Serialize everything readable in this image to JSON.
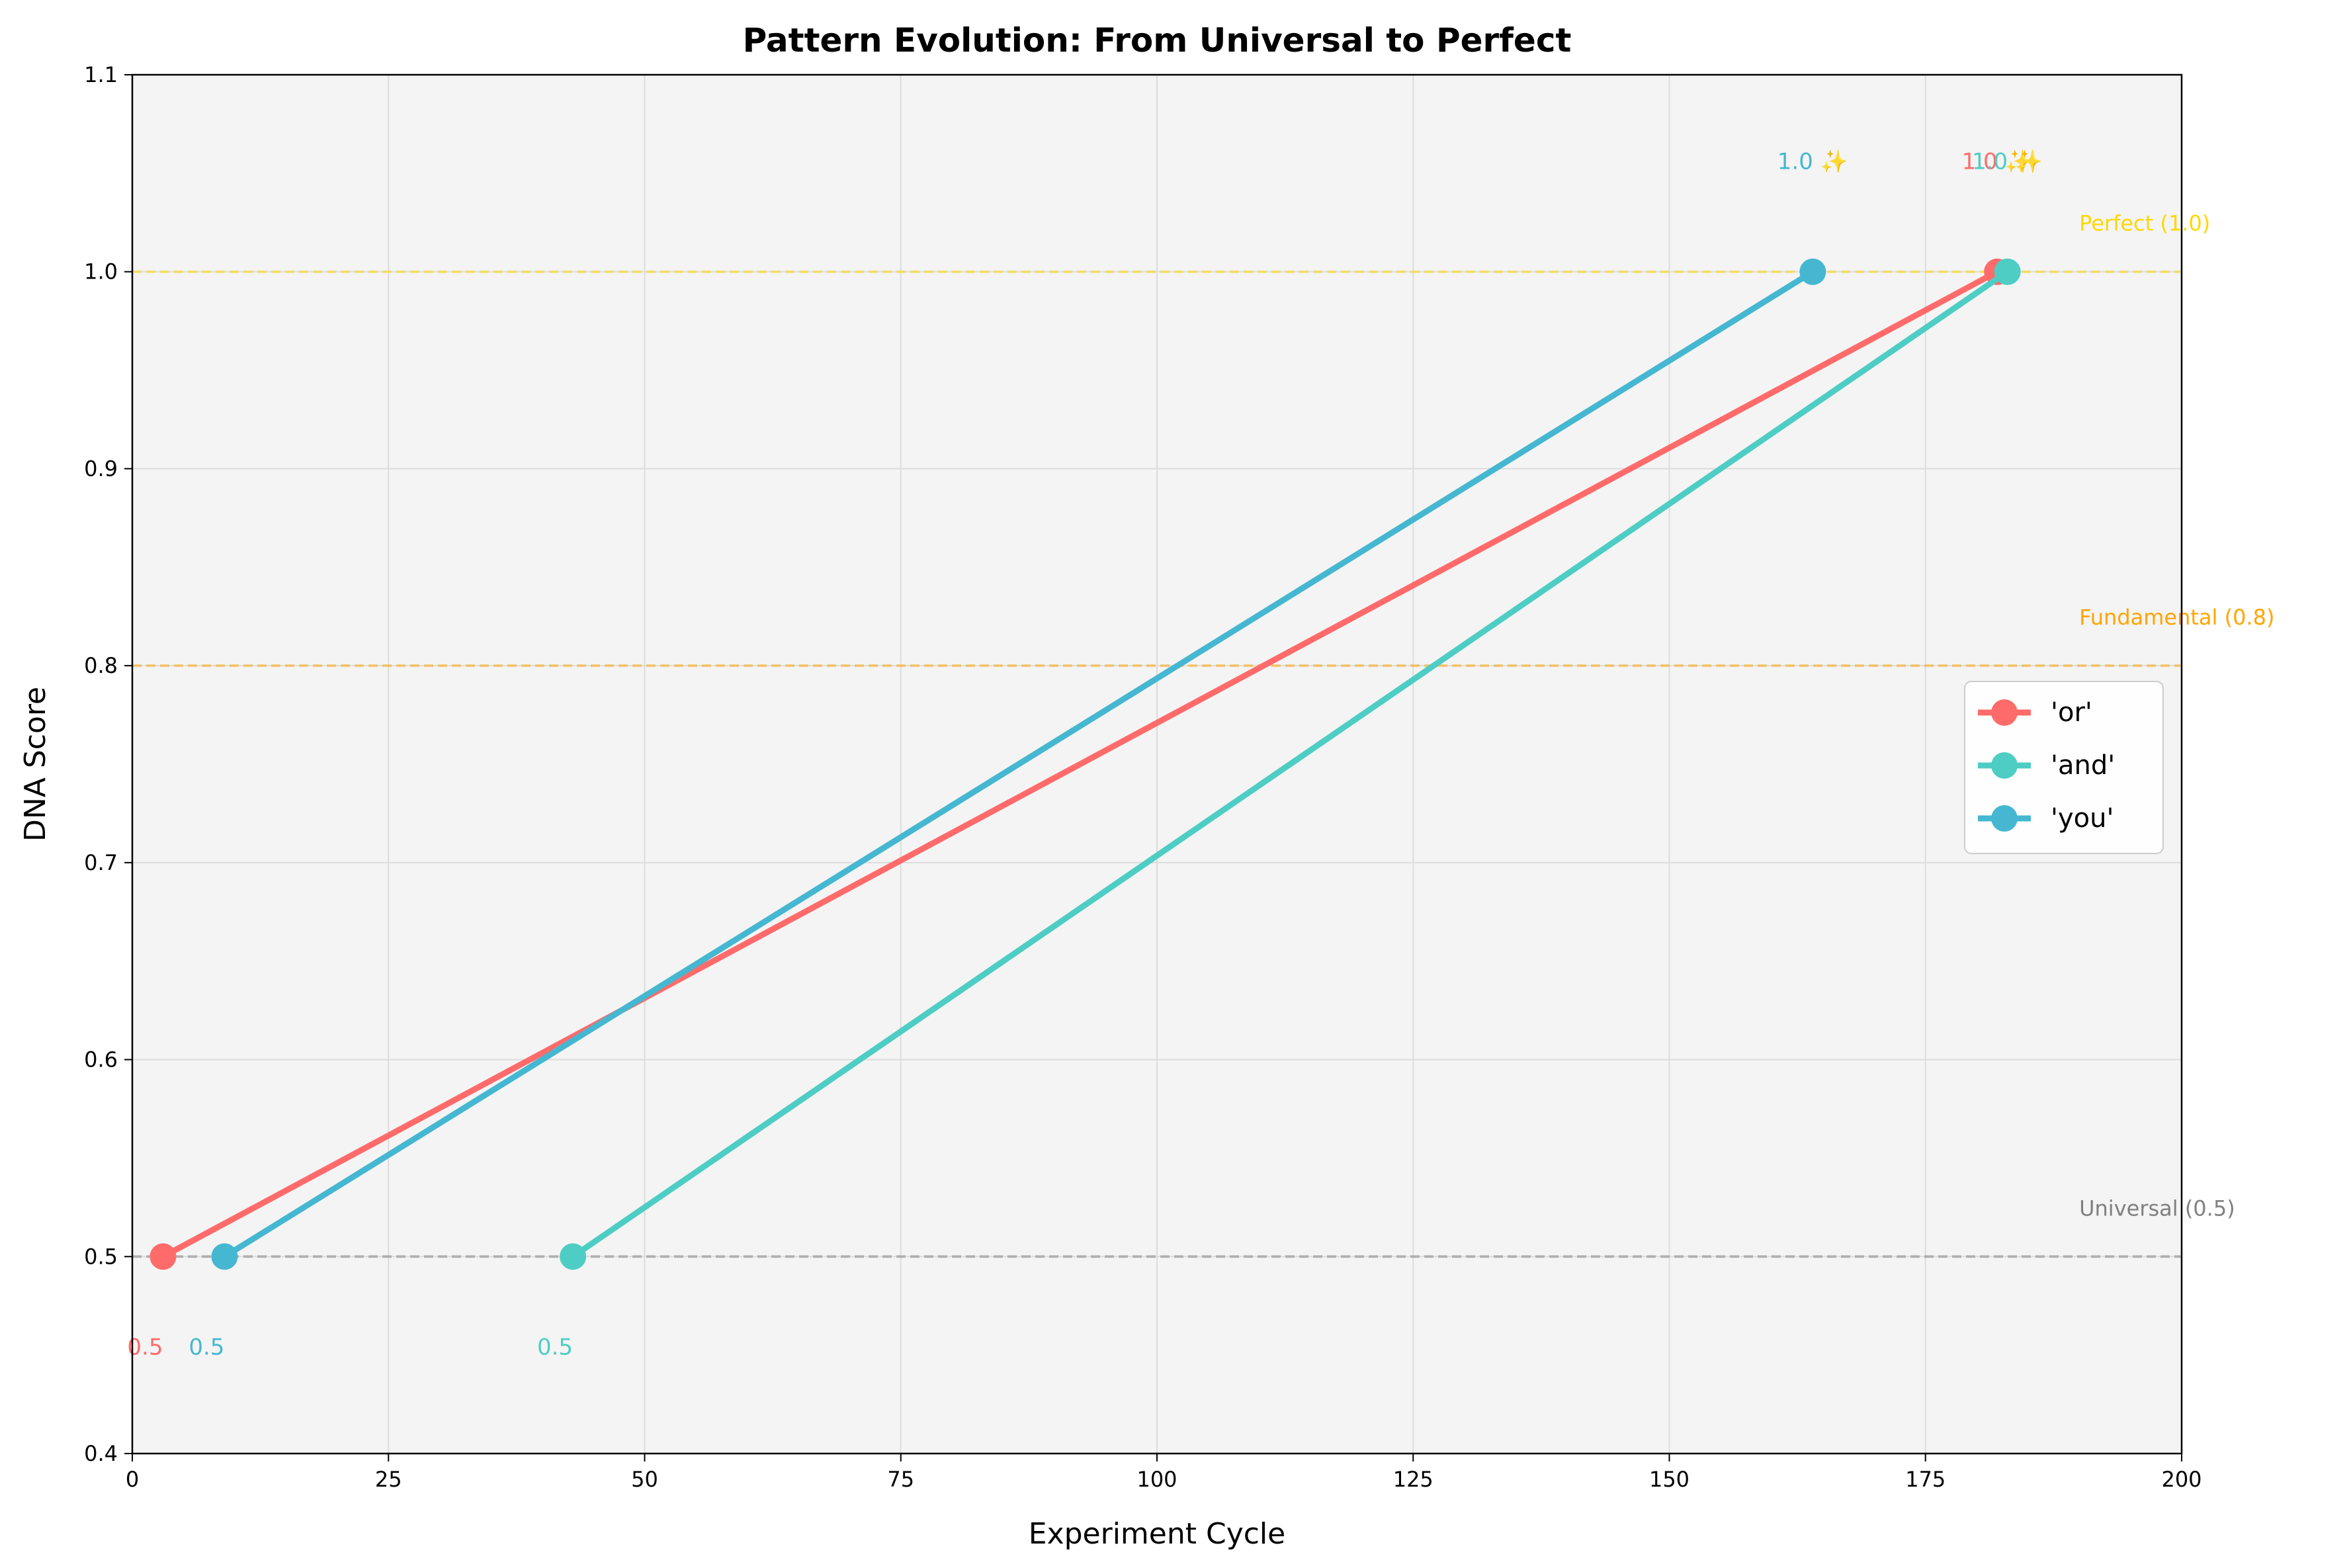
{
  "chart_data": {
    "type": "line",
    "title": "Pattern Evolution: From Universal to Perfect",
    "xlabel": "Experiment Cycle",
    "ylabel": "DNA Score",
    "xlim": [
      0,
      200
    ],
    "ylim": [
      0.4,
      1.1
    ],
    "xticks": [
      0,
      25,
      50,
      75,
      100,
      125,
      150,
      175,
      200
    ],
    "yticks": [
      0.4,
      0.5,
      0.6,
      0.7,
      0.8,
      0.9,
      1.0,
      1.1
    ],
    "ytick_labels": [
      "0.4",
      "0.5",
      "0.6",
      "0.7",
      "0.8",
      "0.9",
      "1.0",
      "1.1"
    ],
    "grid": true,
    "legend": "center-right",
    "series": [
      {
        "name": "'or'",
        "color": "#ff6b6b",
        "x": [
          3,
          182
        ],
        "y": [
          0.5,
          1.0
        ],
        "start_label": "0.5",
        "end_label": "1.0 ✨"
      },
      {
        "name": "'and'",
        "color": "#4ecdc4",
        "x": [
          43,
          183
        ],
        "y": [
          0.5,
          1.0
        ],
        "start_label": "0.5",
        "end_label": "1.0 ✨"
      },
      {
        "name": "'you'",
        "color": "#45b7d1",
        "x": [
          9,
          164
        ],
        "y": [
          0.5,
          1.0
        ],
        "start_label": "0.5",
        "end_label": "1.0 ✨"
      }
    ],
    "reference_lines": [
      {
        "y": 1.0,
        "label": "Perfect (1.0)",
        "color": "#ffd700"
      },
      {
        "y": 0.8,
        "label": "Fundamental (0.8)",
        "color": "#ffa500"
      },
      {
        "y": 0.5,
        "label": "Universal (0.5)",
        "color": "#808080"
      }
    ]
  }
}
